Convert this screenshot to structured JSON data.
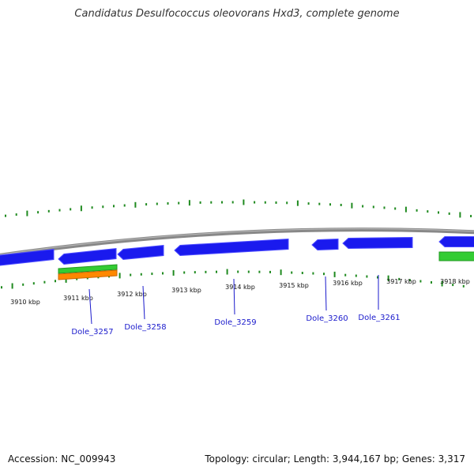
{
  "title": "Candidatus Desulfococcus oleovorans Hxd3, complete genome",
  "footer": {
    "accession": "Accession: NC_009943",
    "summary": "Topology: circular; Length: 3,944,167 bp; Genes: 3,317"
  },
  "colors": {
    "gene": "#1a1aee",
    "gene_edge": "#4a4aff",
    "backbone": "#888888",
    "gc_tick": "#1f8a1f",
    "cog_green": "#33cc33",
    "cog_orange": "#ff8800",
    "label": "#1a1acc"
  },
  "scale": {
    "unit": "kbp",
    "tick_labels": [
      "3910 kbp",
      "3911 kbp",
      "3912 kbp",
      "3913 kbp",
      "3914 kbp",
      "3915 kbp",
      "3916 kbp",
      "3917 kbp",
      "3918 kbp"
    ]
  },
  "genes": [
    {
      "label": "Dole_3257"
    },
    {
      "label": "Dole_3258"
    },
    {
      "label": "Dole_3259"
    },
    {
      "label": "Dole_3260"
    },
    {
      "label": "Dole_3261"
    }
  ]
}
